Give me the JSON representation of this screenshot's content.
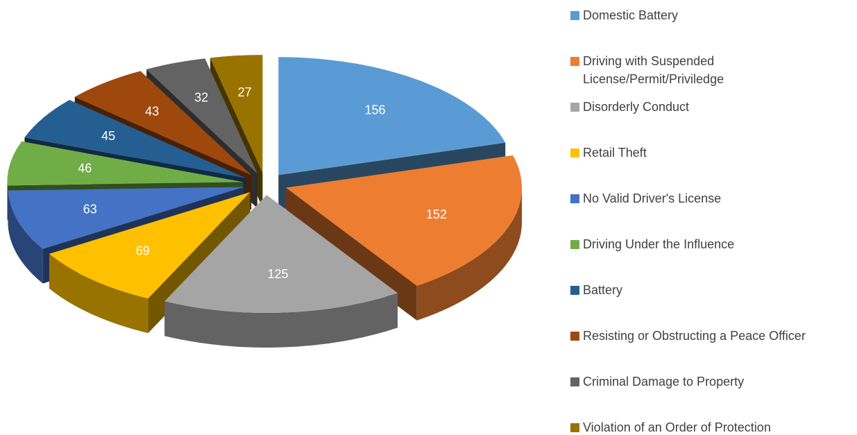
{
  "chart_data": {
    "type": "pie3d",
    "categories": [
      "Domestic Battery",
      "Driving with Suspended License/Permit/Priviledge",
      "Disorderly Conduct",
      "Retail Theft",
      "No Valid Driver's License",
      "Driving Under the Influence",
      "Battery",
      "Resisting or Obstructing a Peace Officer",
      "Criminal Damage to Property",
      "Violation of an Order of Protection"
    ],
    "values": [
      156,
      152,
      125,
      69,
      63,
      46,
      45,
      43,
      32,
      27
    ],
    "colors": [
      "#5b9bd5",
      "#ed7d31",
      "#a5a5a5",
      "#ffc000",
      "#4472c4",
      "#70ad47",
      "#255e91",
      "#9e480e",
      "#636363",
      "#997300"
    ],
    "legend": "right"
  }
}
